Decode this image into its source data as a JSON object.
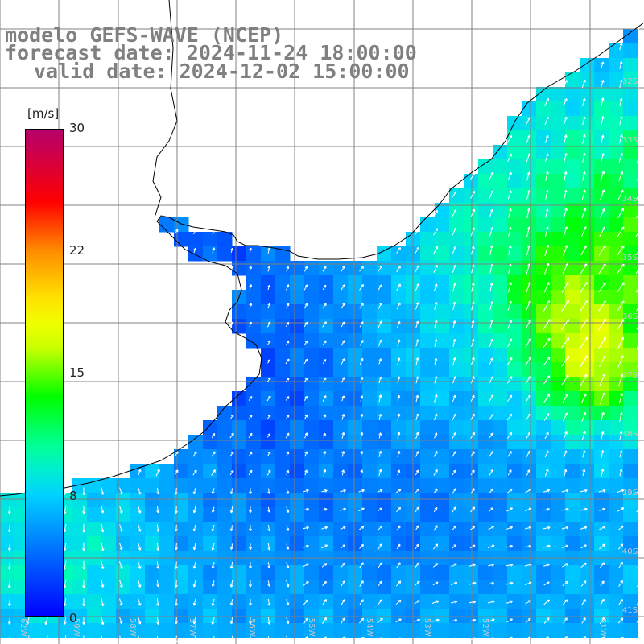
{
  "title": {
    "line1": "modelo GEFS-WAVE (NCEP)",
    "line2": "forecast date: 2024-11-24 18:00:00",
    "line3": "valid date: 2024-12-02 15:00:00"
  },
  "colorbar": {
    "unit": "[m/s]",
    "ticks": [
      "30",
      "22",
      "15",
      "8",
      "0"
    ],
    "min": 0,
    "max": 30
  },
  "lat_labels": [
    "32S",
    "33S",
    "34S",
    "35S",
    "36S",
    "37S",
    "38S",
    "39S",
    "40S",
    "41S"
  ],
  "lon_labels": [
    "62W",
    "59W",
    "58W",
    "57W",
    "56W",
    "55W",
    "54W",
    "53W",
    "52W",
    "51W"
  ],
  "colors": {
    "land": "#ffffff",
    "grid": "#808080",
    "coastline": "#000000",
    "arrows": "#ffffff",
    "title_text": "#808080"
  }
}
